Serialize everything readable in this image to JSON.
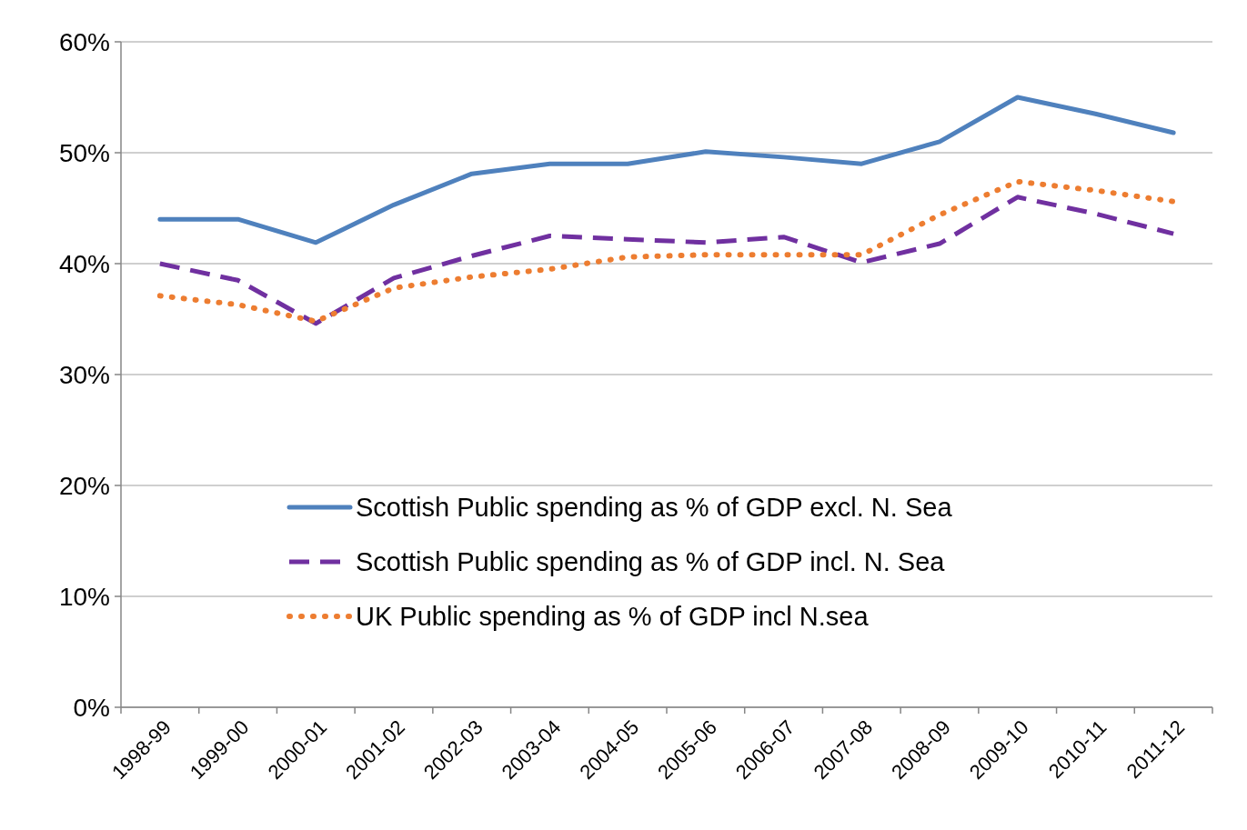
{
  "chart_data": {
    "type": "line",
    "categories": [
      "1998-99",
      "1999-00",
      "2000-01",
      "2001-02",
      "2002-03",
      "2003-04",
      "2004-05",
      "2005-06",
      "2006-07",
      "2007-08",
      "2008-09",
      "2009-10",
      "2010-11",
      "2011-12"
    ],
    "series": [
      {
        "name": "Scottish Public spending as % of GDP excl. N. Sea",
        "color": "#4f81bd",
        "line_style": "solid",
        "values": [
          44,
          44,
          41.9,
          45.3,
          48.1,
          49,
          49,
          50.1,
          49.6,
          49,
          51,
          55,
          53.5,
          51.8
        ]
      },
      {
        "name": "Scottish Public spending as % of GDP incl. N. Sea",
        "color": "#7030a0",
        "line_style": "dashed",
        "values": [
          40,
          38.5,
          34.6,
          38.7,
          40.7,
          42.5,
          42.2,
          41.9,
          42.4,
          40.1,
          41.8,
          46,
          44.5,
          42.7
        ]
      },
      {
        "name": "UK Public spending as % of GDP incl N.sea",
        "color": "#ed7d31",
        "line_style": "dotted",
        "values": [
          37.1,
          36.3,
          34.8,
          37.8,
          38.8,
          39.5,
          40.6,
          40.8,
          40.8,
          40.8,
          44.4,
          47.4,
          46.6,
          45.6
        ]
      }
    ],
    "ylim": [
      0,
      60
    ],
    "yticks": [
      {
        "value": 0,
        "label": "0%"
      },
      {
        "value": 10,
        "label": "10%"
      },
      {
        "value": 20,
        "label": "20%"
      },
      {
        "value": 30,
        "label": "30%"
      },
      {
        "value": 40,
        "label": "40%"
      },
      {
        "value": 50,
        "label": "50%"
      },
      {
        "value": 60,
        "label": "60%"
      }
    ],
    "grid": "y",
    "legend": "bottom",
    "marker": "none"
  }
}
